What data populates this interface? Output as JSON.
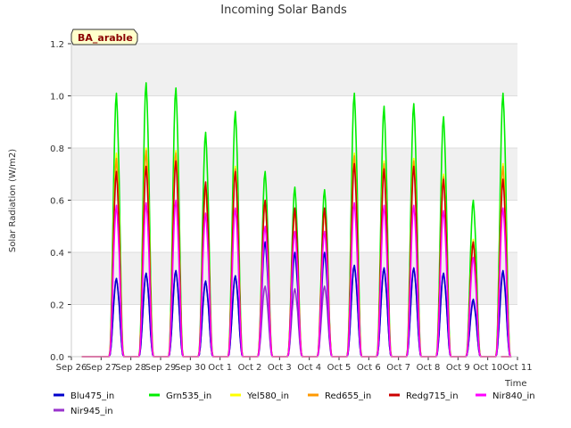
{
  "chart_data": {
    "type": "line",
    "title": "Incoming Solar Bands",
    "xlabel": "Time",
    "ylabel": "Solar Radiation (W/m2)",
    "ylim": [
      0,
      1.2
    ],
    "yticks": [
      "0.0",
      "0.2",
      "0.4",
      "0.6",
      "0.8",
      "1.0",
      "1.2"
    ],
    "xticks": [
      "Sep 26",
      "Sep 27",
      "Sep 28",
      "Sep 29",
      "Sep 30",
      "Oct 1",
      "Oct 2",
      "Oct 3",
      "Oct 4",
      "Oct 5",
      "Oct 6",
      "Oct 7",
      "Oct 8",
      "Oct 9",
      "Oct 10",
      "Oct 11"
    ],
    "badge": "BA_arable",
    "grid": "horizontal bands",
    "legend_position": "bottom",
    "days": [
      "Sep 27",
      "Sep 28",
      "Sep 29",
      "Sep 30",
      "Oct 1",
      "Oct 2",
      "Oct 3",
      "Oct 4",
      "Oct 5",
      "Oct 6",
      "Oct 7",
      "Oct 8",
      "Oct 9",
      "Oct 10"
    ],
    "series": [
      {
        "name": "Blu475_in",
        "color": "#0000cc",
        "daily_peaks": [
          0.3,
          0.32,
          0.33,
          0.29,
          0.31,
          0.44,
          0.4,
          0.4,
          0.35,
          0.34,
          0.34,
          0.32,
          0.22,
          0.33
        ]
      },
      {
        "name": "Grn535_in",
        "color": "#00ee00",
        "daily_peaks": [
          1.01,
          1.05,
          1.03,
          0.86,
          0.94,
          0.71,
          0.65,
          0.64,
          1.01,
          0.96,
          0.97,
          0.92,
          0.6,
          1.01
        ]
      },
      {
        "name": "Yel580_in",
        "color": "#ffff00",
        "daily_peaks": [
          0.78,
          0.8,
          0.79,
          0.66,
          0.73,
          0.6,
          0.56,
          0.56,
          0.78,
          0.75,
          0.76,
          0.7,
          0.45,
          0.74
        ]
      },
      {
        "name": "Red655_in",
        "color": "#ff9900",
        "daily_peaks": [
          0.76,
          0.79,
          0.78,
          0.65,
          0.72,
          0.59,
          0.56,
          0.56,
          0.77,
          0.74,
          0.75,
          0.69,
          0.44,
          0.73
        ]
      },
      {
        "name": "Redg715_in",
        "color": "#cc0000",
        "daily_peaks": [
          0.71,
          0.73,
          0.75,
          0.67,
          0.71,
          0.6,
          0.57,
          0.57,
          0.74,
          0.72,
          0.73,
          0.68,
          0.44,
          0.68
        ]
      },
      {
        "name": "Nir840_in",
        "color": "#ff00ff",
        "daily_peaks": [
          0.58,
          0.59,
          0.6,
          0.55,
          0.57,
          0.5,
          0.48,
          0.48,
          0.59,
          0.58,
          0.58,
          0.56,
          0.38,
          0.57
        ]
      },
      {
        "name": "Nir945_in",
        "color": "#9933cc",
        "daily_peaks": [
          0.3,
          0.32,
          0.33,
          0.29,
          0.31,
          0.27,
          0.26,
          0.27,
          0.35,
          0.34,
          0.34,
          0.32,
          0.21,
          0.32
        ]
      }
    ]
  }
}
